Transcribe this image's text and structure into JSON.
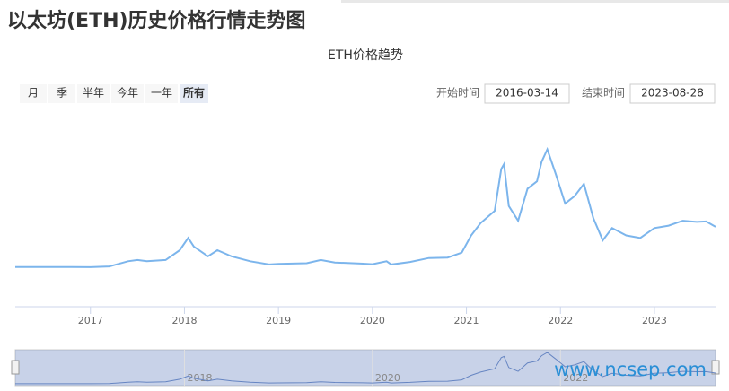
{
  "page_title": "以太坊(ETH)历史价格行情走势图",
  "range_buttons": [
    "月",
    "季",
    "半年",
    "今年",
    "一年",
    "所有"
  ],
  "start_label": "开始时间",
  "start_date": "2016-03-14",
  "end_label": "结束时间",
  "end_date": "2023-08-28",
  "watermark": "www.ncsep.com",
  "chart_data": {
    "type": "line",
    "title": "ETH价格趋势",
    "color": "#7cb5ec",
    "x": [
      2016.2,
      2016.5,
      2016.8,
      2017.0,
      2017.2,
      2017.4,
      2017.5,
      2017.6,
      2017.8,
      2017.95,
      2018.04,
      2018.1,
      2018.25,
      2018.35,
      2018.5,
      2018.7,
      2018.9,
      2019.0,
      2019.3,
      2019.45,
      2019.6,
      2019.9,
      2020.0,
      2020.15,
      2020.2,
      2020.4,
      2020.6,
      2020.8,
      2020.95,
      2021.05,
      2021.15,
      2021.3,
      2021.37,
      2021.4,
      2021.45,
      2021.55,
      2021.65,
      2021.75,
      2021.8,
      2021.86,
      2021.95,
      2022.05,
      2022.15,
      2022.25,
      2022.35,
      2022.45,
      2022.55,
      2022.7,
      2022.85,
      2023.0,
      2023.15,
      2023.3,
      2023.45,
      2023.55,
      2023.65
    ],
    "values": [
      12,
      13,
      12,
      10,
      40,
      250,
      300,
      250,
      300,
      700,
      1200,
      850,
      450,
      700,
      450,
      250,
      120,
      140,
      170,
      300,
      200,
      150,
      130,
      250,
      120,
      220,
      380,
      400,
      600,
      1300,
      1800,
      2300,
      4000,
      4200,
      2500,
      1900,
      3200,
      3500,
      4300,
      4800,
      3800,
      2600,
      2900,
      3400,
      2000,
      1100,
      1600,
      1300,
      1200,
      1600,
      1700,
      1900,
      1850,
      1870,
      1650
    ],
    "xlim": [
      2016.2,
      2023.65
    ],
    "ylim": [
      -1600,
      6500
    ],
    "xticks": [
      2017,
      2018,
      2019,
      2020,
      2021,
      2022,
      2023
    ],
    "navigator_xticks": [
      2018,
      2020,
      2022
    ]
  }
}
